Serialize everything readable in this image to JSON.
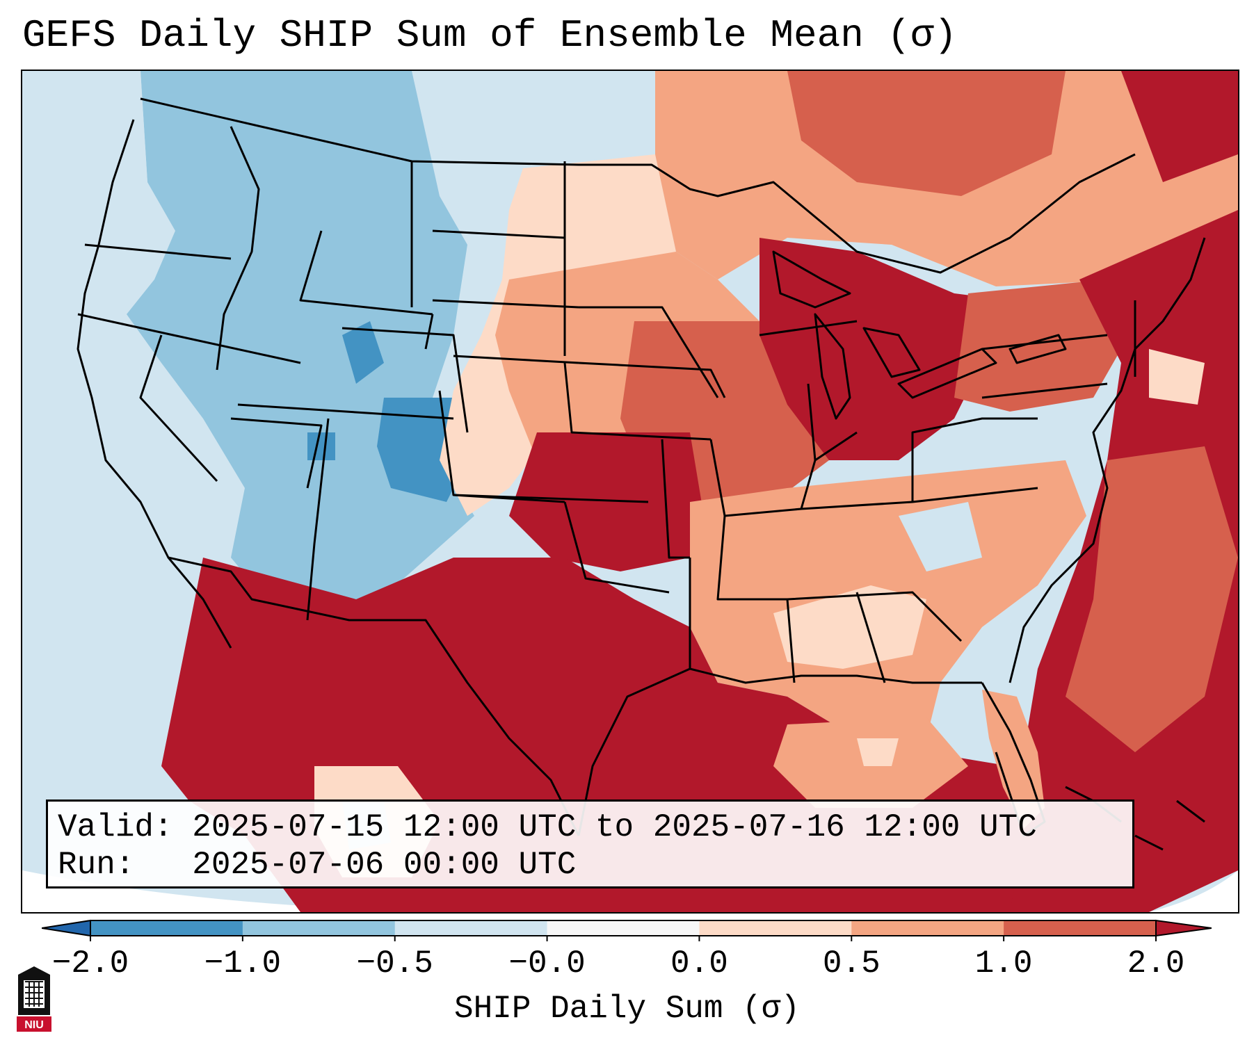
{
  "title": "GEFS Daily SHIP Sum of Ensemble Mean (σ)",
  "info": {
    "valid": "Valid: 2025-07-15 12:00 UTC to 2025-07-16 12:00 UTC",
    "run": "Run:   2025-07-06 00:00 UTC"
  },
  "colorbar": {
    "label": "SHIP Daily Sum (σ)",
    "ticks": [
      "−2.0",
      "−1.0",
      "−0.5",
      "−0.0",
      "0.0",
      "0.5",
      "1.0",
      "2.0"
    ],
    "colors": [
      "#2166ac",
      "#4393c3",
      "#92c5de",
      "#d1e5f0",
      "#f7f7f7",
      "#fddbc7",
      "#f4a582",
      "#d6604d",
      "#b2182b"
    ],
    "extend": "both"
  },
  "map": {
    "region": "Contiguous United States",
    "variable": "SHIP daily sum standardized anomaly",
    "ocean_color": "#d1e5f0"
  },
  "logo": {
    "text": "NIU"
  }
}
